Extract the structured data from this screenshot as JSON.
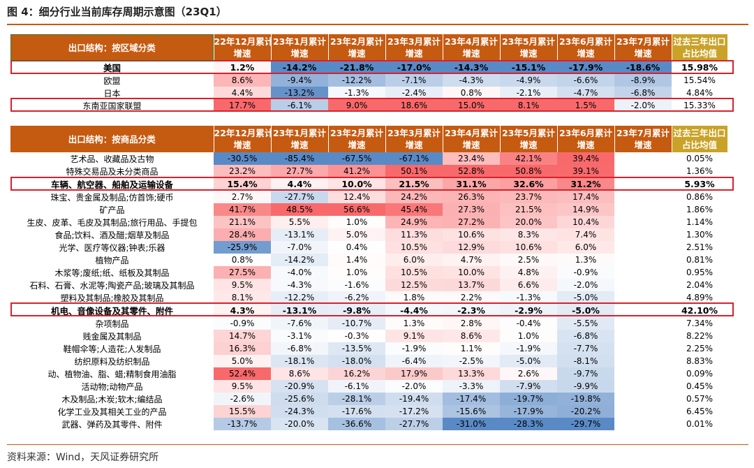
{
  "title": "图 4：细分行业当前库存周期示意图（23Q1）",
  "source": "资料来源：Wind，天风证券研究所",
  "colors": {
    "header_bg": "#c55a11",
    "avg_header_bg": "#c9a227",
    "positive": "#f8696b",
    "negative": "#5a8ac6",
    "highlight_border": "#d9202b"
  },
  "columns": [
    [
      "22年12月累计",
      "增速"
    ],
    [
      "23年1月累计",
      "增速"
    ],
    [
      "23年2月累计",
      "增速"
    ],
    [
      "23年3月累计",
      "增速"
    ],
    [
      "23年4月累计",
      "增速"
    ],
    [
      "23年5月累计",
      "增速"
    ],
    [
      "23年6月累计",
      "增速"
    ],
    [
      "23年7月累计",
      "增速"
    ],
    [
      "过去三年出口",
      "占比均值"
    ]
  ],
  "chart_data": [
    {
      "type": "table",
      "title": "出口结构：按区域分类",
      "columns": [
        "22年12月累计增速",
        "23年1月累计增速",
        "23年2月累计增速",
        "23年3月累计增速",
        "23年4月累计增速",
        "23年5月累计增速",
        "23年6月累计增速",
        "23年7月累计增速",
        "过去三年出口占比均值"
      ],
      "rows": [
        {
          "name": "美国",
          "values": [
            "1.2%",
            "-14.2%",
            "-21.8%",
            "-17.0%",
            "-14.3%",
            "-15.1%",
            "-17.9%",
            "-18.6%",
            "15.98%"
          ],
          "bold": true,
          "highlight": true
        },
        {
          "name": "欧盟",
          "values": [
            "8.6%",
            "-9.4%",
            "-12.2%",
            "-7.1%",
            "-4.3%",
            "-4.9%",
            "-6.6%",
            "-8.9%",
            "15.54%"
          ]
        },
        {
          "name": "日本",
          "values": [
            "4.4%",
            "-13.2%",
            "-1.3%",
            "-2.4%",
            "0.8%",
            "-2.1%",
            "-4.7%",
            "-6.8%",
            "4.84%"
          ]
        },
        {
          "name": "东南亚国家联盟",
          "values": [
            "17.7%",
            "-6.1%",
            "9.0%",
            "18.6%",
            "15.0%",
            "8.1%",
            "1.5%",
            "-2.0%",
            "15.33%"
          ],
          "highlight": true
        }
      ]
    },
    {
      "type": "table",
      "title": "出口结构：按商品分类",
      "columns": [
        "22年12月累计增速",
        "23年1月累计增速",
        "23年2月累计增速",
        "23年3月累计增速",
        "23年4月累计增速",
        "23年5月累计增速",
        "23年6月累计增速",
        "23年7月累计增速",
        "过去三年出口占比均值"
      ],
      "rows": [
        {
          "name": "艺术品、收藏品及古物",
          "values": [
            "-30.5%",
            "-85.4%",
            "-67.5%",
            "-67.1%",
            "23.4%",
            "42.1%",
            "39.4%",
            "",
            "0.05%"
          ]
        },
        {
          "name": "特殊交易品及未分类商品",
          "values": [
            "23.2%",
            "27.7%",
            "41.2%",
            "50.1%",
            "52.8%",
            "50.8%",
            "39.1%",
            "",
            "1.36%"
          ]
        },
        {
          "name": "车辆、航空器、船舶及运输设备",
          "values": [
            "15.4%",
            "4.4%",
            "10.0%",
            "21.5%",
            "31.1%",
            "32.6%",
            "31.2%",
            "",
            "5.93%"
          ],
          "bold": true,
          "highlight": true
        },
        {
          "name": "珠宝、贵金属及制品;仿首饰;硬币",
          "values": [
            "2.7%",
            "-27.7%",
            "12.4%",
            "24.2%",
            "26.3%",
            "23.7%",
            "17.4%",
            "",
            "0.86%"
          ]
        },
        {
          "name": "矿产品",
          "values": [
            "41.7%",
            "48.5%",
            "56.6%",
            "45.4%",
            "27.3%",
            "21.5%",
            "14.9%",
            "",
            "1.86%"
          ]
        },
        {
          "name": "生皮、皮革、毛皮及其制品;旅行用品、手提包",
          "values": [
            "21.1%",
            "5.5%",
            "1.0%",
            "24.9%",
            "27.2%",
            "20.0%",
            "10.4%",
            "",
            "1.14%"
          ]
        },
        {
          "name": "食品;饮料、酒及醋;烟草及制品",
          "values": [
            "28.4%",
            "-13.1%",
            "5.0%",
            "11.3%",
            "10.6%",
            "8.3%",
            "7.4%",
            "",
            "1.30%"
          ]
        },
        {
          "name": "光学、医疗等仪器;钟表;乐器",
          "values": [
            "-25.9%",
            "-7.0%",
            "0.4%",
            "10.5%",
            "12.9%",
            "10.6%",
            "6.0%",
            "",
            "2.51%"
          ]
        },
        {
          "name": "植物产品",
          "values": [
            "0.8%",
            "-14.2%",
            "1.4%",
            "6.0%",
            "4.7%",
            "2.5%",
            "1.3%",
            "",
            "0.81%"
          ]
        },
        {
          "name": "木浆等;废纸;纸、纸板及其制品",
          "values": [
            "27.5%",
            "-4.0%",
            "1.0%",
            "10.5%",
            "10.0%",
            "4.8%",
            "-0.9%",
            "",
            "0.95%"
          ]
        },
        {
          "name": "石料、石膏、水泥等;陶瓷产品;玻璃及其制品",
          "values": [
            "9.5%",
            "-4.3%",
            "-1.6%",
            "12.5%",
            "13.7%",
            "6.6%",
            "-2.0%",
            "",
            "2.04%"
          ]
        },
        {
          "name": "塑料及其制品;橡胶及其制品",
          "values": [
            "8.1%",
            "-12.2%",
            "-6.2%",
            "1.8%",
            "2.2%",
            "-1.3%",
            "-5.0%",
            "",
            "4.89%"
          ]
        },
        {
          "name": "机电、音像设备及其零件、附件",
          "values": [
            "4.3%",
            "-13.1%",
            "-9.8%",
            "-4.4%",
            "-2.3%",
            "-2.9%",
            "-5.0%",
            "",
            "42.10%"
          ],
          "bold": true,
          "highlight": true
        },
        {
          "name": "杂项制品",
          "values": [
            "-0.9%",
            "-7.6%",
            "-10.7%",
            "1.3%",
            "2.8%",
            "-0.4%",
            "-5.5%",
            "",
            "7.34%"
          ]
        },
        {
          "name": "贱金属及其制品",
          "values": [
            "14.7%",
            "-3.1%",
            "-0.3%",
            "9.1%",
            "8.6%",
            "1.0%",
            "-6.8%",
            "",
            "8.22%"
          ]
        },
        {
          "name": "鞋帽伞等;人造花;人发制品",
          "values": [
            "16.3%",
            "-6.8%",
            "-13.5%",
            "-1.9%",
            "1.1%",
            "-1.9%",
            "-7.7%",
            "",
            "2.25%"
          ]
        },
        {
          "name": "纺织原料及纺织制品",
          "values": [
            "5.0%",
            "-18.1%",
            "-18.0%",
            "-6.4%",
            "-2.5%",
            "-5.0%",
            "-8.1%",
            "",
            "8.83%"
          ]
        },
        {
          "name": "动、植物油、脂、蜡;精制食用油脂",
          "values": [
            "52.4%",
            "8.6%",
            "16.2%",
            "17.9%",
            "13.3%",
            "2.6%",
            "-9.7%",
            "",
            "0.09%"
          ]
        },
        {
          "name": "活动物;动物产品",
          "values": [
            "9.5%",
            "-20.9%",
            "-6.1%",
            "-2.0%",
            "-3.3%",
            "-7.9%",
            "-9.9%",
            "",
            "0.45%"
          ]
        },
        {
          "name": "木及制品;木炭;软木;编结品",
          "values": [
            "-2.6%",
            "-25.6%",
            "-28.1%",
            "-19.4%",
            "-17.4%",
            "-19.7%",
            "-19.8%",
            "",
            "0.57%"
          ]
        },
        {
          "name": "化学工业及其相关工业的产品",
          "values": [
            "15.5%",
            "-24.3%",
            "-17.6%",
            "-17.2%",
            "-15.6%",
            "-17.9%",
            "-20.2%",
            "",
            "6.45%"
          ]
        },
        {
          "name": "武器、弹药及其零件、附件",
          "values": [
            "-13.7%",
            "-20.0%",
            "-36.6%",
            "-27.7%",
            "-31.0%",
            "-28.3%",
            "-29.7%",
            "",
            "0.01%"
          ]
        }
      ]
    }
  ]
}
